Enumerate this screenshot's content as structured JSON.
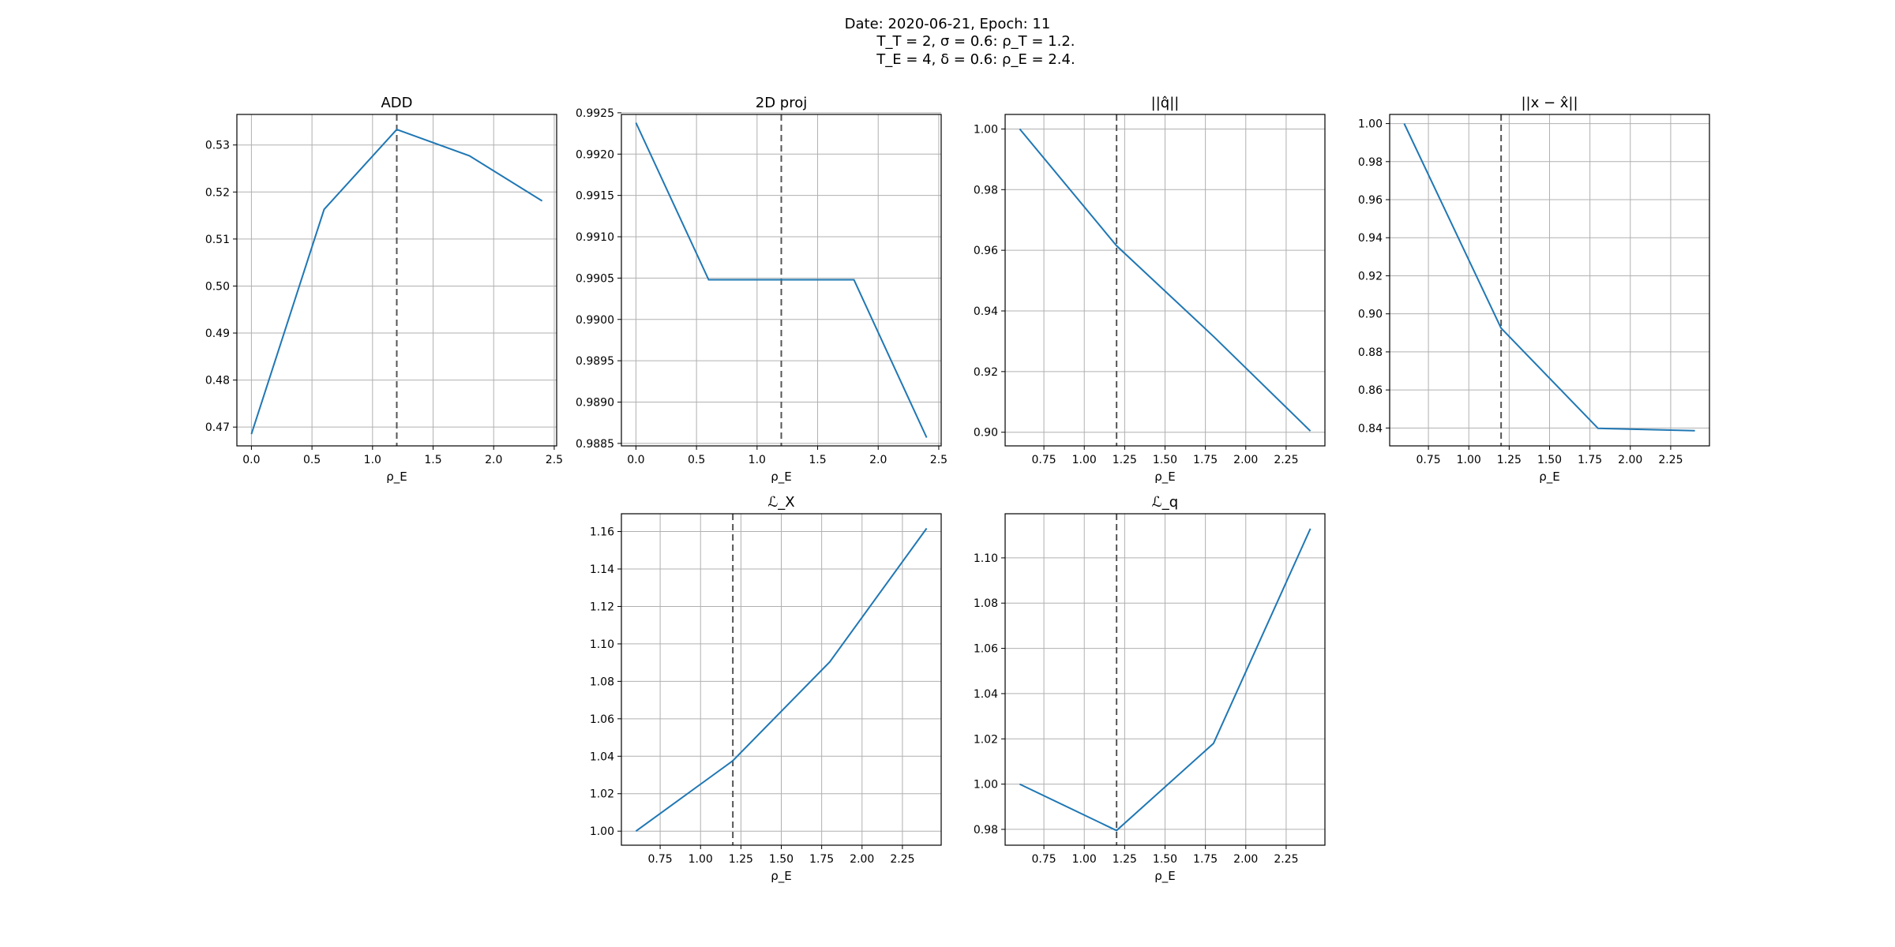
{
  "figure": {
    "suptitle_lines": [
      "Date: 2020-06-21, Epoch: 11",
      "T_T = 2, σ = 0.6: ρ_T = 1.2.",
      "T_E = 4, δ = 0.6: ρ_E = 2.4."
    ]
  },
  "chart_data": [
    {
      "type": "line",
      "title": "ADD",
      "xlabel": "ρ_E",
      "x": [
        0.0,
        0.6,
        1.2,
        1.8,
        2.4
      ],
      "values": [
        0.4685,
        0.5163,
        0.5333,
        0.5277,
        0.5181
      ],
      "xlim": [
        -0.12,
        2.52
      ],
      "ylim": [
        0.466,
        0.5365
      ],
      "xticks": [
        "0.0",
        "0.5",
        "1.0",
        "1.5",
        "2.0",
        "2.5"
      ],
      "xtick_values": [
        0.0,
        0.5,
        1.0,
        1.5,
        2.0,
        2.5
      ],
      "yticks": [
        "0.47",
        "0.48",
        "0.49",
        "0.50",
        "0.51",
        "0.52",
        "0.53"
      ],
      "ytick_values": [
        0.47,
        0.48,
        0.49,
        0.5,
        0.51,
        0.52,
        0.53
      ],
      "vline_x": 1.2,
      "grid": true
    },
    {
      "type": "line",
      "title": "2D proj",
      "xlabel": "ρ_E",
      "x": [
        0.0,
        0.6,
        1.2,
        1.8,
        2.4
      ],
      "values": [
        0.99238,
        0.99048,
        0.99048,
        0.99048,
        0.98857
      ],
      "xlim": [
        -0.12,
        2.52
      ],
      "ylim": [
        0.98847,
        0.99248
      ],
      "xticks": [
        "0.0",
        "0.5",
        "1.0",
        "1.5",
        "2.0",
        "2.5"
      ],
      "xtick_values": [
        0.0,
        0.5,
        1.0,
        1.5,
        2.0,
        2.5
      ],
      "yticks": [
        "0.9885",
        "0.9890",
        "0.9895",
        "0.9900",
        "0.9905",
        "0.9910",
        "0.9915",
        "0.9920",
        "0.9925"
      ],
      "ytick_values": [
        0.9885,
        0.989,
        0.9895,
        0.99,
        0.9905,
        0.991,
        0.9915,
        0.992,
        0.9925
      ],
      "vline_x": 1.2,
      "grid": true
    },
    {
      "type": "line",
      "title": "||q̂||",
      "xlabel": "ρ_E",
      "x": [
        0.6,
        1.2,
        1.8,
        2.4
      ],
      "values": [
        1.0,
        0.9615,
        0.9316,
        0.9004
      ],
      "xlim": [
        0.51,
        2.49
      ],
      "ylim": [
        0.8955,
        1.0048
      ],
      "xticks": [
        "0.75",
        "1.00",
        "1.25",
        "1.50",
        "1.75",
        "2.00",
        "2.25"
      ],
      "xtick_values": [
        0.75,
        1.0,
        1.25,
        1.5,
        1.75,
        2.0,
        2.25
      ],
      "yticks": [
        "0.90",
        "0.92",
        "0.94",
        "0.96",
        "0.98",
        "1.00"
      ],
      "ytick_values": [
        0.9,
        0.92,
        0.94,
        0.96,
        0.98,
        1.0
      ],
      "vline_x": 1.2,
      "grid": true
    },
    {
      "type": "line",
      "title": "||x − x̂||",
      "xlabel": "ρ_E",
      "x": [
        0.6,
        1.2,
        1.8,
        2.4
      ],
      "values": [
        1.0,
        0.8925,
        0.8398,
        0.8386
      ],
      "xlim": [
        0.51,
        2.49
      ],
      "ylim": [
        0.8306,
        1.0048
      ],
      "xticks": [
        "0.75",
        "1.00",
        "1.25",
        "1.50",
        "1.75",
        "2.00",
        "2.25"
      ],
      "xtick_values": [
        0.75,
        1.0,
        1.25,
        1.5,
        1.75,
        2.0,
        2.25
      ],
      "yticks": [
        "0.84",
        "0.86",
        "0.88",
        "0.90",
        "0.92",
        "0.94",
        "0.96",
        "0.98",
        "1.00"
      ],
      "ytick_values": [
        0.84,
        0.86,
        0.88,
        0.9,
        0.92,
        0.94,
        0.96,
        0.98,
        1.0
      ],
      "vline_x": 1.2,
      "grid": true
    },
    {
      "type": "line",
      "title": "ℒ_X",
      "xlabel": "ρ_E",
      "x": [
        0.6,
        1.2,
        1.8,
        2.4
      ],
      "values": [
        1.0,
        1.0376,
        1.0904,
        1.1617
      ],
      "xlim": [
        0.51,
        2.49
      ],
      "ylim": [
        0.9925,
        1.1695
      ],
      "xticks": [
        "0.75",
        "1.00",
        "1.25",
        "1.50",
        "1.75",
        "2.00",
        "2.25"
      ],
      "xtick_values": [
        0.75,
        1.0,
        1.25,
        1.5,
        1.75,
        2.0,
        2.25
      ],
      "yticks": [
        "1.00",
        "1.02",
        "1.04",
        "1.06",
        "1.08",
        "1.10",
        "1.12",
        "1.14",
        "1.16"
      ],
      "ytick_values": [
        1.0,
        1.02,
        1.04,
        1.06,
        1.08,
        1.1,
        1.12,
        1.14,
        1.16
      ],
      "vline_x": 1.2,
      "grid": true
    },
    {
      "type": "line",
      "title": "ℒ_q",
      "xlabel": "ρ_E",
      "x": [
        0.6,
        1.2,
        1.8,
        2.4
      ],
      "values": [
        1.0,
        0.9795,
        1.018,
        1.1129
      ],
      "xlim": [
        0.51,
        2.49
      ],
      "ylim": [
        0.973,
        1.1195
      ],
      "xticks": [
        "0.75",
        "1.00",
        "1.25",
        "1.50",
        "1.75",
        "2.00",
        "2.25"
      ],
      "xtick_values": [
        0.75,
        1.0,
        1.25,
        1.5,
        1.75,
        2.0,
        2.25
      ],
      "yticks": [
        "0.98",
        "1.00",
        "1.02",
        "1.04",
        "1.06",
        "1.08",
        "1.10"
      ],
      "ytick_values": [
        0.98,
        1.0,
        1.02,
        1.04,
        1.06,
        1.08,
        1.1
      ],
      "vline_x": 1.2,
      "grid": true
    }
  ]
}
